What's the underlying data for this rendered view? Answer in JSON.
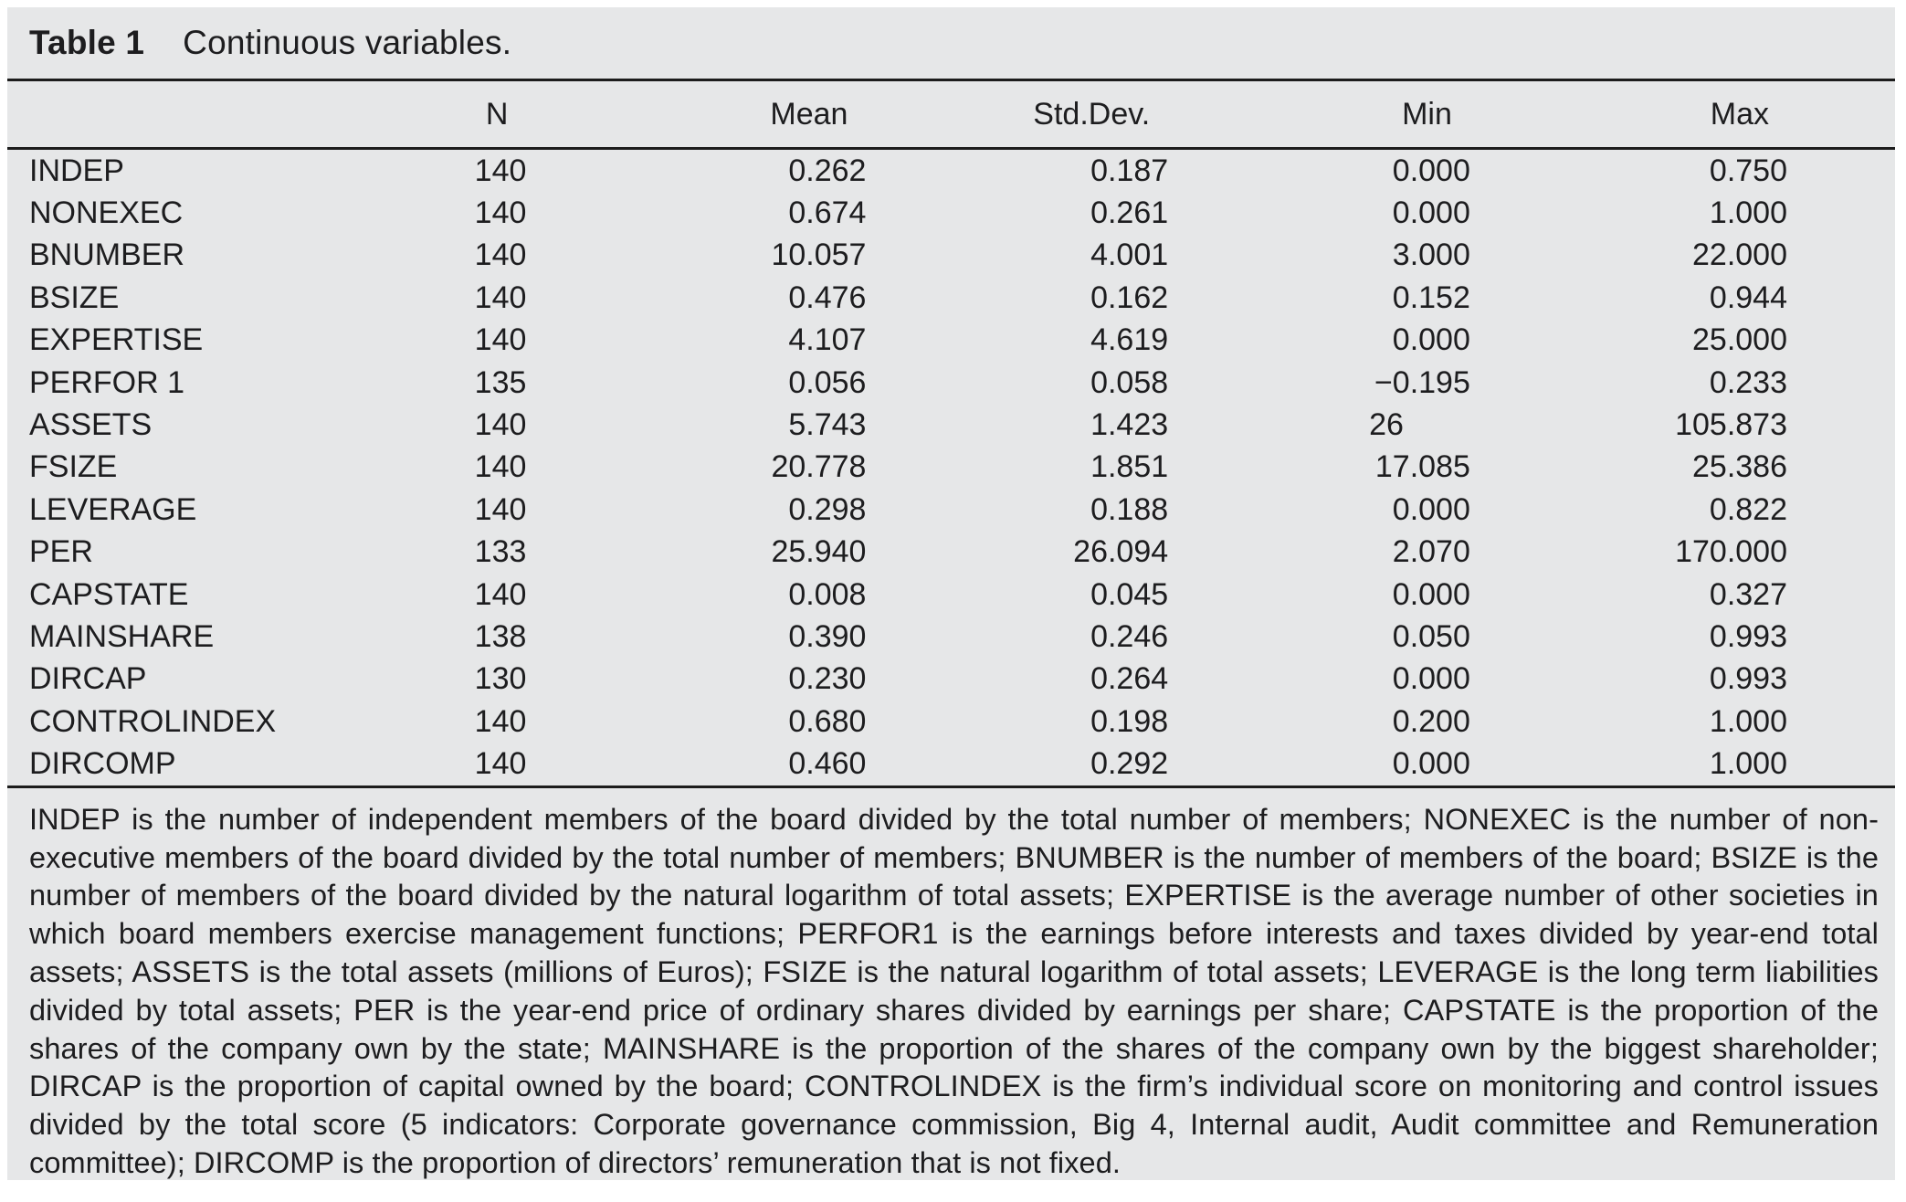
{
  "title": {
    "label": "Table 1",
    "caption": "Continuous variables."
  },
  "table": {
    "columns": [
      "",
      "N",
      "Mean",
      "Std.Dev.",
      "Min",
      "Max"
    ],
    "rows": [
      {
        "name": "INDEP",
        "n": "140",
        "mean": "0.262",
        "std": "0.187",
        "min": "0.000",
        "max": "0.750"
      },
      {
        "name": "NONEXEC",
        "n": "140",
        "mean": "0.674",
        "std": "0.261",
        "min": "0.000",
        "max": "1.000"
      },
      {
        "name": "BNUMBER",
        "n": "140",
        "mean": "10.057",
        "std": "4.001",
        "min": "3.000",
        "max": "22.000"
      },
      {
        "name": "BSIZE",
        "n": "140",
        "mean": "0.476",
        "std": "0.162",
        "min": "0.152",
        "max": "0.944"
      },
      {
        "name": "EXPERTISE",
        "n": "140",
        "mean": "4.107",
        "std": "4.619",
        "min": "0.000",
        "max": "25.000"
      },
      {
        "name": "PERFOR 1",
        "n": "135",
        "mean": "0.056",
        "std": "0.058",
        "min": "−0.195",
        "max": "0.233"
      },
      {
        "name": "ASSETS",
        "n": "140",
        "mean": "5.743",
        "std": "1.423",
        "min": "26",
        "max": "105.873"
      },
      {
        "name": "FSIZE",
        "n": "140",
        "mean": "20.778",
        "std": "1.851",
        "min": "17.085",
        "max": "25.386"
      },
      {
        "name": "LEVERAGE",
        "n": "140",
        "mean": "0.298",
        "std": "0.188",
        "min": "0.000",
        "max": "0.822"
      },
      {
        "name": "PER",
        "n": "133",
        "mean": "25.940",
        "std": "26.094",
        "min": "2.070",
        "max": "170.000"
      },
      {
        "name": "CAPSTATE",
        "n": "140",
        "mean": "0.008",
        "std": "0.045",
        "min": "0.000",
        "max": "0.327"
      },
      {
        "name": "MAINSHARE",
        "n": "138",
        "mean": "0.390",
        "std": "0.246",
        "min": "0.050",
        "max": "0.993"
      },
      {
        "name": "DIRCAP",
        "n": "130",
        "mean": "0.230",
        "std": "0.264",
        "min": "0.000",
        "max": "0.993"
      },
      {
        "name": "CONTROLINDEX",
        "n": "140",
        "mean": "0.680",
        "std": "0.198",
        "min": "0.200",
        "max": "1.000"
      },
      {
        "name": "DIRCOMP",
        "n": "140",
        "mean": "0.460",
        "std": "0.292",
        "min": "0.000",
        "max": "1.000"
      }
    ]
  },
  "footnote": "INDEP is the number of independent members of the board divided by the total number of members; NONEXEC is the number of non-executive members of the board divided by the total number of members; BNUMBER is the number of members of the board; BSIZE is the number of members of the board divided by the natural logarithm of total assets; EXPERTISE is the average number of other societies in which board members exercise management functions; PERFOR1 is the earnings before interests and taxes divided by year-end total assets; ASSETS is the total assets (millions of Euros); FSIZE is the natural logarithm of total assets; LEVERAGE is the long term liabilities divided by total assets; PER is the year-end price of ordinary shares divided by earnings per share; CAPSTATE is the proportion of the shares of the company own by the state; MAINSHARE is the proportion of the shares of the company own by the biggest shareholder; DIRCAP is the proportion of capital owned by the board; CONTROLINDEX is the firm’s individual score on monitoring and control issues divided by the total score (5 indicators: Corporate governance commission, Big 4, Internal audit, Audit committee and Remuneration committee); DIRCOMP is the proportion of directors’ remuneration that is not fixed.",
  "colors": {
    "panel_bg": "#e6e7e8",
    "text": "#1d1d1f",
    "rule": "#1c1c1c"
  }
}
